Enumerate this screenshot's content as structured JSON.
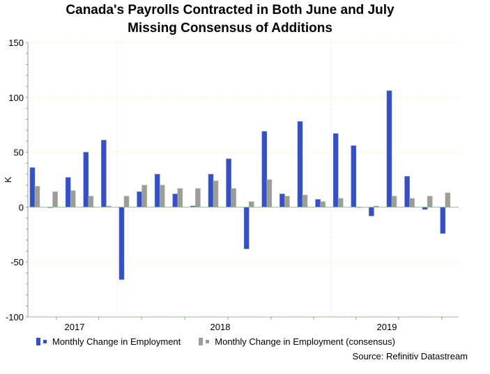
{
  "chart_data": {
    "type": "bar",
    "title": "Canada's Payrolls Contracted in Both June and July Missing Consensus of Additions",
    "title_lines": [
      "Canada's Payrolls Contracted in Both June and July",
      "Missing Consensus of Additions"
    ],
    "ylabel": "K",
    "xlabel": "",
    "ylim": [
      -100,
      150
    ],
    "yticks": [
      150,
      100,
      50,
      0,
      -50,
      -100
    ],
    "xtick_labels": [
      "2017",
      "2018",
      "2019"
    ],
    "grid": true,
    "legend_position": "bottom",
    "categories": [
      "2017-08",
      "2017-09",
      "2017-10",
      "2017-11",
      "2017-12",
      "2018-01",
      "2018-02",
      "2018-03",
      "2018-04",
      "2018-05",
      "2018-06",
      "2018-07",
      "2018-08",
      "2018-09",
      "2018-10",
      "2018-11",
      "2018-12",
      "2019-01",
      "2019-02",
      "2019-03",
      "2019-04",
      "2019-05",
      "2019-06",
      "2019-07"
    ],
    "series": [
      {
        "name": "Monthly Change in Employment",
        "color": "#3350c8",
        "values": [
          36,
          0,
          27,
          50,
          61,
          -66,
          14,
          30,
          12,
          1,
          30,
          44,
          -38,
          69,
          12,
          78,
          7,
          67,
          56,
          -8,
          106,
          28,
          -2,
          -24
        ]
      },
      {
        "name": "Monthly Change in Employment (consensus)",
        "color": "#9a9e96",
        "values": [
          19,
          14,
          15,
          10,
          1,
          10,
          20,
          20,
          17,
          17,
          24,
          17,
          5,
          25,
          10,
          11,
          5,
          8,
          0,
          1,
          10,
          8,
          10,
          13
        ]
      }
    ],
    "source": "Source: Refinitiv Datastream"
  }
}
